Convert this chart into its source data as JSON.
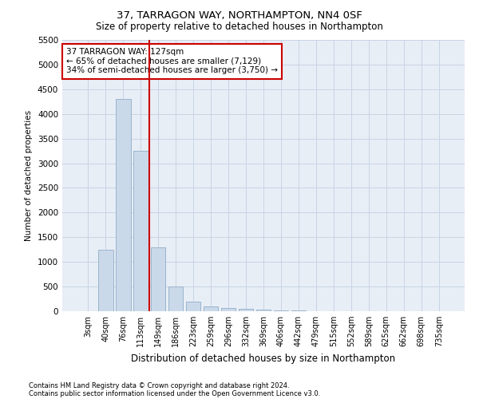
{
  "title1": "37, TARRAGON WAY, NORTHAMPTON, NN4 0SF",
  "title2": "Size of property relative to detached houses in Northampton",
  "xlabel": "Distribution of detached houses by size in Northampton",
  "ylabel": "Number of detached properties",
  "footnote1": "Contains HM Land Registry data © Crown copyright and database right 2024.",
  "footnote2": "Contains public sector information licensed under the Open Government Licence v3.0.",
  "annotation_line1": "37 TARRAGON WAY: 127sqm",
  "annotation_line2": "← 65% of detached houses are smaller (7,129)",
  "annotation_line3": "34% of semi-detached houses are larger (3,750) →",
  "bar_color": "#cad9ea",
  "bar_edge_color": "#9ab4cc",
  "grid_color": "#c8d4e4",
  "background_color": "#e8eef6",
  "vline_color": "#cc0000",
  "annotation_box_edge": "#cc0000",
  "categories": [
    "3sqm",
    "40sqm",
    "76sqm",
    "113sqm",
    "149sqm",
    "186sqm",
    "223sqm",
    "259sqm",
    "296sqm",
    "332sqm",
    "369sqm",
    "406sqm",
    "442sqm",
    "479sqm",
    "515sqm",
    "552sqm",
    "589sqm",
    "625sqm",
    "662sqm",
    "698sqm",
    "735sqm"
  ],
  "values": [
    0,
    1250,
    4300,
    3250,
    1300,
    500,
    200,
    100,
    70,
    50,
    30,
    20,
    10,
    5,
    3,
    0,
    0,
    0,
    0,
    0,
    0
  ],
  "ylim": [
    0,
    5500
  ],
  "yticks": [
    0,
    500,
    1000,
    1500,
    2000,
    2500,
    3000,
    3500,
    4000,
    4500,
    5000,
    5500
  ],
  "figsize": [
    6.0,
    5.0
  ],
  "dpi": 100
}
